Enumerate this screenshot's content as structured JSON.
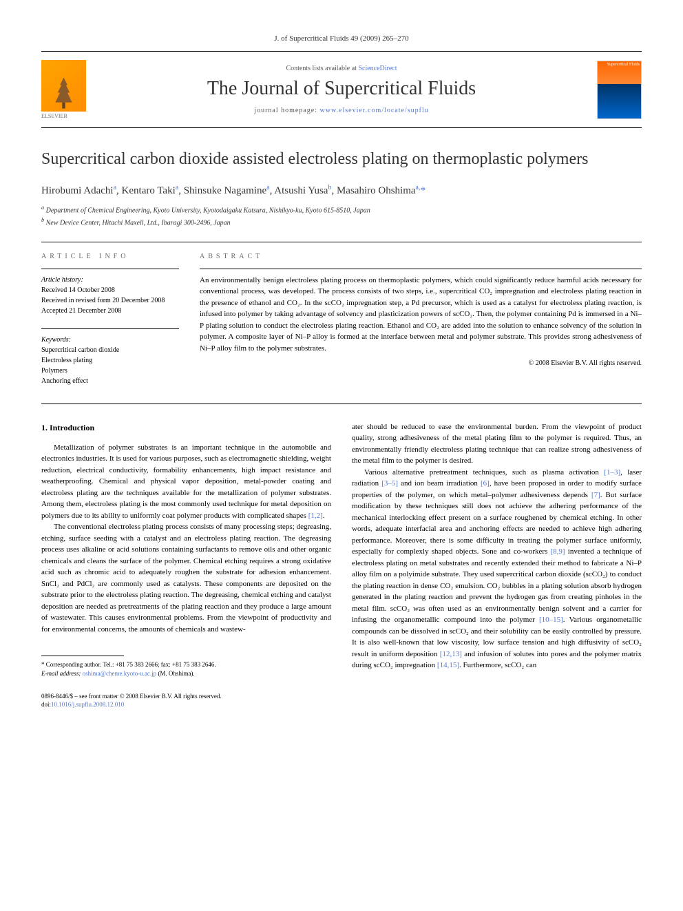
{
  "header": {
    "journal_line": "J. of Supercritical Fluids 49 (2009) 265–270"
  },
  "banner": {
    "contents_prefix": "Contents lists available at ",
    "contents_link": "ScienceDirect",
    "journal_title": "The Journal of Supercritical Fluids",
    "homepage_prefix": "journal homepage: ",
    "homepage_link": "www.elsevier.com/locate/supflu",
    "elsevier_label": "ELSEVIER",
    "cover_text": "Supercritical Fluids"
  },
  "title": "Supercritical carbon dioxide assisted electroless plating on thermoplastic polymers",
  "authors_html": "Hirobumi Adachi<sup>a</sup>, Kentaro Taki<sup>a</sup>, Shinsuke Nagamine<sup>a</sup>, Atsushi Yusa<sup>b</sup>, Masahiro Ohshima<sup>a,</sup><span class='star'>*</span>",
  "affiliations": {
    "a": "Department of Chemical Engineering, Kyoto University, Kyotodaigaku Katsura, Nishikyo-ku, Kyoto 615-8510, Japan",
    "b": "New Device Center, Hitachi Maxell, Ltd., Ibaragi 300-2496, Japan"
  },
  "article_info": {
    "label": "ARTICLE INFO",
    "history_label": "Article history:",
    "received": "Received 14 October 2008",
    "revised": "Received in revised form 20 December 2008",
    "accepted": "Accepted 21 December 2008",
    "keywords_label": "Keywords:",
    "keywords": [
      "Supercritical carbon dioxide",
      "Electroless plating",
      "Polymers",
      "Anchoring effect"
    ]
  },
  "abstract": {
    "label": "ABSTRACT",
    "text": "An environmentally benign electroless plating process on thermoplastic polymers, which could significantly reduce harmful acids necessary for conventional process, was developed. The process consists of two steps, i.e., supercritical CO₂ impregnation and electroless plating reaction in the presence of ethanol and CO₂. In the scCO₂ impregnation step, a Pd precursor, which is used as a catalyst for electroless plating reaction, is infused into polymer by taking advantage of solvency and plasticization powers of scCO₂. Then, the polymer containing Pd is immersed in a Ni–P plating solution to conduct the electroless plating reaction. Ethanol and CO₂ are added into the solution to enhance solvency of the solution in polymer. A composite layer of Ni–P alloy is formed at the interface between metal and polymer substrate. This provides strong adhesiveness of Ni–P alloy film to the polymer substrates.",
    "copyright": "© 2008 Elsevier B.V. All rights reserved."
  },
  "body": {
    "section_heading": "1. Introduction",
    "col1_p1": "Metallization of polymer substrates is an important technique in the automobile and electronics industries. It is used for various purposes, such as electromagnetic shielding, weight reduction, electrical conductivity, formability enhancements, high impact resistance and weatherproofing. Chemical and physical vapor deposition, metal-powder coating and electroless plating are the techniques available for the metallization of polymer substrates. Among them, electroless plating is the most commonly used technique for metal deposition on polymers due to its ability to uniformly coat polymer products with complicated shapes ",
    "col1_p1_ref": "[1,2]",
    "col1_p2": "The conventional electroless plating process consists of many processing steps; degreasing, etching, surface seeding with a catalyst and an electroless plating reaction. The degreasing process uses alkaline or acid solutions containing surfactants to remove oils and other organic chemicals and cleans the surface of the polymer. Chemical etching requires a strong oxidative acid such as chromic acid to adequately roughen the substrate for adhesion enhancement. SnCl₂ and PdCl₂ are commonly used as catalysts. These components are deposited on the substrate prior to the electroless plating reaction. The degreasing, chemical etching and catalyst deposition are needed as pretreatments of the plating reaction and they produce a large amount of wastewater. This causes environmental problems. From the viewpoint of productivity and for environmental concerns, the amounts of chemicals and wastew-",
    "col2_p0": "ater should be reduced to ease the environmental burden. From the viewpoint of product quality, strong adhesiveness of the metal plating film to the polymer is required. Thus, an environmentally friendly electroless plating technique that can realize strong adhesiveness of the metal film to the polymer is desired.",
    "col2_p1_a": "Various alternative pretreatment techniques, such as plasma activation ",
    "col2_p1_ref1": "[1–3]",
    "col2_p1_b": ", laser radiation ",
    "col2_p1_ref2": "[3–5]",
    "col2_p1_c": " and ion beam irradiation ",
    "col2_p1_ref3": "[6]",
    "col2_p1_d": ", have been proposed in order to modify surface properties of the polymer, on which metal–polymer adhesiveness depends ",
    "col2_p1_ref4": "[7]",
    "col2_p1_e": ". But surface modification by these techniques still does not achieve the adhering performance of the mechanical interlocking effect present on a surface roughened by chemical etching. In other words, adequate interfacial area and anchoring effects are needed to achieve high adhering performance. Moreover, there is some difficulty in treating the polymer surface uniformly, especially for complexly shaped objects. Sone and co-workers ",
    "col2_p1_ref5": "[8,9]",
    "col2_p1_f": " invented a technique of electroless plating on metal substrates and recently extended their method to fabricate a Ni–P alloy film on a polyimide substrate. They used supercritical carbon dioxide (scCO₂) to conduct the plating reaction in dense CO₂ emulsion. CO₂ bubbles in a plating solution absorb hydrogen generated in the plating reaction and prevent the hydrogen gas from creating pinholes in the metal film. scCO₂ was often used as an environmentally benign solvent and a carrier for infusing the organometallic compound into the polymer ",
    "col2_p1_ref6": "[10–15]",
    "col2_p1_g": ". Various organometallic compounds can be dissolved in scCO₂ and their solubility can be easily controlled by pressure. It is also well-known that low viscosity, low surface tension and high diffusivity of scCO₂ result in uniform deposition ",
    "col2_p1_ref7": "[12,13]",
    "col2_p1_h": " and infusion of solutes into pores and the polymer matrix during scCO₂ impregnation ",
    "col2_p1_ref8": "[14,15]",
    "col2_p1_i": ". Furthermore, scCO₂ can"
  },
  "footnotes": {
    "corresponding": "* Corresponding author. Tel.: +81 75 383 2666; fax: +81 75 383 2646.",
    "email_label": "E-mail address: ",
    "email": "oshima@cheme.kyoto-u.ac.jp",
    "email_suffix": " (M. Ohshima)."
  },
  "footer": {
    "issn": "0896-8446/$ – see front matter © 2008 Elsevier B.V. All rights reserved.",
    "doi_label": "doi:",
    "doi": "10.1016/j.supflu.2008.12.010"
  }
}
